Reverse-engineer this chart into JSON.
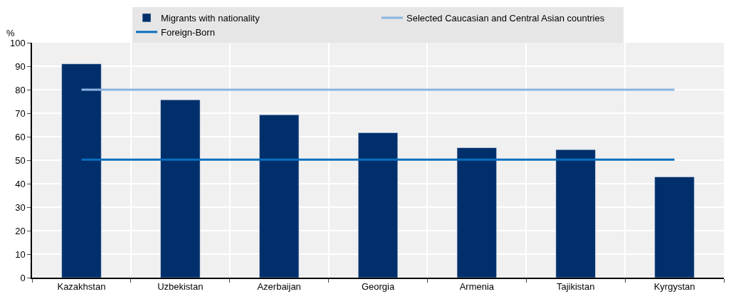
{
  "chart_data": {
    "type": "bar",
    "ylabel": "%",
    "categories": [
      "Kazakhstan",
      "Uzbekistan",
      "Azerbaijan",
      "Georgia",
      "Armenia",
      "Tajikistan",
      "Kyrgystan"
    ],
    "series": [
      {
        "name": "Migrants with nationality",
        "color": "#002f6c",
        "values": [
          91,
          75.7,
          69.3,
          61.7,
          55.3,
          54.5,
          42.9
        ]
      },
      {
        "name": "Selected Caucasian and Central Asian countries",
        "type": "line",
        "color": "#8cb3e0",
        "values": [
          80,
          80,
          80,
          80,
          80,
          80,
          80
        ]
      },
      {
        "name": "Foreign-Born",
        "type": "line",
        "color": "#0a6ebd",
        "values": [
          50.2,
          50.2,
          50.2,
          50.2,
          50.2,
          50.2,
          50.2
        ]
      }
    ],
    "ylim": [
      0,
      100
    ],
    "yticks": [
      0,
      10,
      20,
      30,
      40,
      50,
      60,
      70,
      80,
      90,
      100
    ],
    "grid": true,
    "legend": "top",
    "line_style": "solid",
    "marker": "none"
  }
}
